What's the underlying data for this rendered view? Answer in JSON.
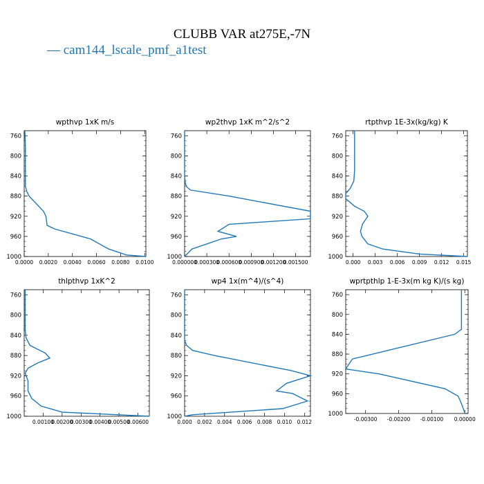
{
  "figure": {
    "title": "CLUBB VAR at275E,-7N",
    "legend": "— cam144_lscale_pmf_a1test",
    "line_color": "#1f77b4"
  },
  "chart_data": [
    {
      "type": "line",
      "title": "wpthvp  1xK m/s",
      "x_ticks": [
        "0.0000",
        "0.0020",
        "0.0040",
        "0.0060",
        "0.0080",
        "0.0100"
      ],
      "y_ticks": [
        "760",
        "800",
        "840",
        "880",
        "920",
        "960",
        "1000"
      ],
      "xlim": [
        0.0,
        0.0101
      ],
      "ylim": [
        1000,
        750
      ],
      "series": [
        {
          "x": [
            5e-05,
            0.0001,
            0.0001,
            0.0001,
            0.0001,
            0.0001,
            0.0002,
            0.0004,
            0.0008,
            0.0012,
            0.0016,
            0.0018,
            0.0019,
            0.0025,
            0.0055,
            0.007,
            0.0085,
            0.0101
          ],
          "y": [
            750,
            780,
            800,
            820,
            840,
            860,
            870,
            880,
            890,
            900,
            910,
            920,
            938,
            945,
            965,
            985,
            997,
            1000
          ]
        }
      ]
    },
    {
      "type": "line",
      "title": "wp2thvp  1xK m^2/s^2",
      "x_ticks": [
        "0.000000",
        "0.000300",
        "0.000600",
        "0.000900",
        "0.001200",
        "0.001500"
      ],
      "y_ticks": [
        "760",
        "800",
        "840",
        "880",
        "920",
        "960",
        "1000"
      ],
      "xlim": [
        0.0,
        0.0017
      ],
      "ylim": [
        1000,
        750
      ],
      "series": [
        {
          "x": [
            0.0,
            0.0,
            0.0,
            1e-05,
            3e-05,
            8e-05,
            0.0006,
            0.0017,
            0.0017,
            0.0006,
            0.00045,
            0.0007,
            0.0005,
            0.0003,
            0.0001,
            0.0
          ],
          "y": [
            750,
            800,
            840,
            855,
            862,
            868,
            880,
            910,
            925,
            936,
            950,
            960,
            965,
            975,
            985,
            1000
          ]
        }
      ]
    },
    {
      "type": "line",
      "title": "rtpthvp  1E-3x(kg/kg) K",
      "x_ticks": [
        "0.000",
        "0.003",
        "0.006",
        "0.009",
        "0.012",
        "0.015"
      ],
      "y_ticks": [
        "760",
        "800",
        "840",
        "880",
        "920",
        "960",
        "1000"
      ],
      "xlim": [
        -0.001,
        0.0155
      ],
      "ylim": [
        1000,
        750
      ],
      "series": [
        {
          "x": [
            0.0002,
            0.0002,
            0.0002,
            0.0001,
            -0.0004,
            -0.0012,
            -0.001,
            0.0002,
            0.0015,
            0.002,
            0.0013,
            0.001,
            0.0012,
            0.002,
            0.004,
            0.009,
            0.0155
          ],
          "y": [
            750,
            790,
            830,
            850,
            865,
            875,
            885,
            900,
            910,
            920,
            935,
            950,
            960,
            975,
            985,
            995,
            1000
          ]
        }
      ]
    },
    {
      "type": "line",
      "title": "thlpthvp  1xK^2",
      "x_ticks": [
        "0.00100",
        "0.00200",
        "0.00300",
        "0.00400",
        "0.00500",
        "0.00600"
      ],
      "y_ticks": [
        "760",
        "800",
        "840",
        "880",
        "920",
        "960",
        "1000"
      ],
      "xlim": [
        0.0,
        0.0066
      ],
      "ylim": [
        1000,
        750
      ],
      "series": [
        {
          "x": [
            5e-05,
            5e-05,
            5e-05,
            0.0001,
            0.0003,
            0.0011,
            0.00135,
            0.0007,
            0.0002,
            5e-05,
            0.0002,
            0.0002,
            0.0004,
            0.0009,
            0.002,
            0.0066
          ],
          "y": [
            750,
            800,
            830,
            845,
            860,
            875,
            885,
            895,
            905,
            915,
            930,
            950,
            965,
            980,
            992,
            1000
          ]
        }
      ]
    },
    {
      "type": "line",
      "title": "wp4  1x(m^4)/(s^4)",
      "x_ticks": [
        "0.000",
        "0.002",
        "0.004",
        "0.006",
        "0.008",
        "0.010",
        "0.012"
      ],
      "y_ticks": [
        "760",
        "800",
        "840",
        "880",
        "920",
        "960",
        "1000"
      ],
      "xlim": [
        0.0,
        0.0126
      ],
      "ylim": [
        1000,
        750
      ],
      "series": [
        {
          "x": [
            0.0,
            0.0,
            0.0,
            0.0002,
            0.0008,
            0.003,
            0.0107,
            0.0126,
            0.0102,
            0.0092,
            0.0108,
            0.0123,
            0.0098,
            0.0008,
            0.0
          ],
          "y": [
            750,
            800,
            850,
            860,
            870,
            880,
            910,
            920,
            935,
            950,
            955,
            970,
            985,
            997,
            1000
          ]
        }
      ]
    },
    {
      "type": "line",
      "title": "wprtpthlp  1-E-3x(m kg K)/(s kg)",
      "x_ticks": [
        "-0.00300",
        "-0.00200",
        "-0.00100",
        "0.00000"
      ],
      "y_ticks": [
        "760",
        "800",
        "840",
        "880",
        "920",
        "960",
        "1000"
      ],
      "xlim": [
        -0.0036,
        0.0001
      ],
      "ylim": [
        1000,
        750
      ],
      "series": [
        {
          "x": [
            -0.0001,
            -0.0001,
            -0.0001,
            -0.0001,
            -0.0003,
            -0.0034,
            -0.0036,
            -0.0026,
            -0.0006,
            -0.0002,
            -0.0001,
            -2e-05,
            0.0
          ],
          "y": [
            750,
            790,
            820,
            830,
            840,
            890,
            910,
            920,
            950,
            965,
            980,
            995,
            1000
          ]
        }
      ]
    }
  ]
}
